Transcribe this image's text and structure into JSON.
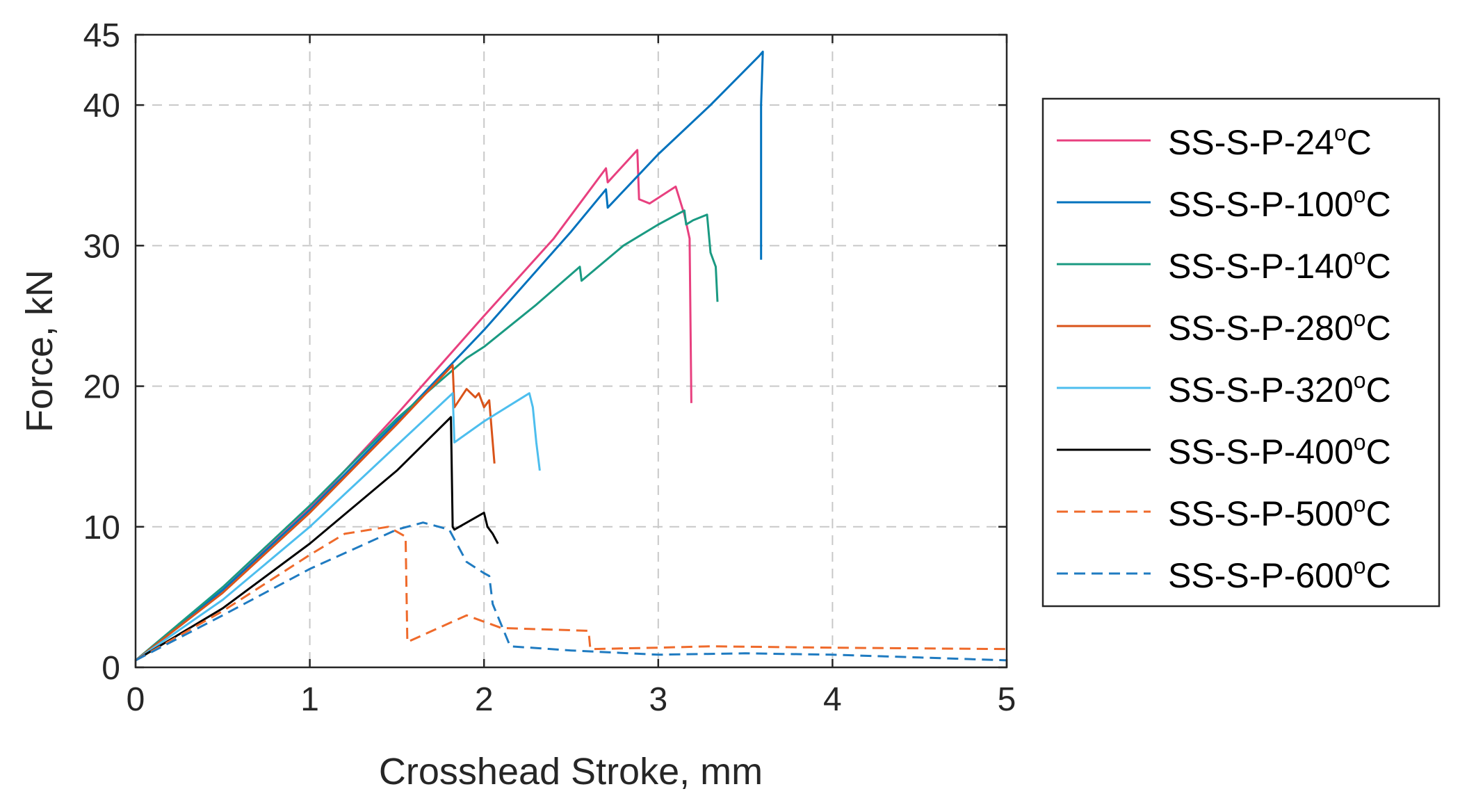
{
  "chart_data": {
    "type": "line",
    "title": "",
    "xlabel": "Crosshead Stroke, mm",
    "ylabel": "Force, kN",
    "xlim": [
      0,
      5
    ],
    "ylim": [
      0,
      45
    ],
    "xticks": [
      "0",
      "1",
      "2",
      "3",
      "4",
      "5"
    ],
    "yticks": [
      "0",
      "10",
      "20",
      "30",
      "40",
      "45"
    ],
    "grid": true,
    "legend_position": "outside-right",
    "series": [
      {
        "name": "SS-S-P-24",
        "unit_sup": "o",
        "unit": "C",
        "color": "#e8407f",
        "dash": "solid",
        "x": [
          0,
          0.5,
          1.0,
          1.5,
          2.0,
          2.4,
          2.7,
          2.71,
          2.88,
          2.89,
          2.95,
          3.1,
          3.15,
          3.18,
          3.19
        ],
        "y": [
          0.5,
          5.5,
          11.3,
          18.0,
          25.0,
          30.5,
          35.5,
          34.5,
          36.8,
          33.3,
          33.0,
          34.2,
          32.2,
          30.5,
          18.8
        ]
      },
      {
        "name": "SS-S-P-100",
        "unit_sup": "o",
        "unit": "C",
        "color": "#0072bd",
        "dash": "solid",
        "x": [
          0,
          0.5,
          1.0,
          1.5,
          2.0,
          2.5,
          2.7,
          2.71,
          3.0,
          3.3,
          3.58,
          3.6,
          3.59,
          3.59
        ],
        "y": [
          0.5,
          5.5,
          11.2,
          17.5,
          24.0,
          31.0,
          34.0,
          32.7,
          36.5,
          40.0,
          43.5,
          43.8,
          40.0,
          29.0
        ]
      },
      {
        "name": "SS-S-P-140",
        "unit_sup": "o",
        "unit": "C",
        "color": "#1a9a82",
        "dash": "solid",
        "x": [
          0,
          0.5,
          1.0,
          1.5,
          1.9,
          2.0,
          2.1,
          2.3,
          2.55,
          2.56,
          2.8,
          3.0,
          3.15,
          3.16,
          3.2,
          3.28,
          3.3,
          3.33,
          3.34
        ],
        "y": [
          0.5,
          5.7,
          11.5,
          17.7,
          22.0,
          22.8,
          23.8,
          25.8,
          28.5,
          27.5,
          30.0,
          31.5,
          32.5,
          31.5,
          31.8,
          32.2,
          29.5,
          28.5,
          26.0
        ]
      },
      {
        "name": "SS-S-P-280",
        "unit_sup": "o",
        "unit": "C",
        "color": "#d95319",
        "dash": "solid",
        "x": [
          0,
          0.5,
          1.0,
          1.5,
          1.82,
          1.83,
          1.9,
          1.95,
          1.97,
          2.0,
          2.03,
          2.05,
          2.06
        ],
        "y": [
          0.5,
          5.3,
          11.0,
          17.3,
          21.5,
          18.5,
          19.8,
          19.2,
          19.5,
          18.5,
          19.0,
          16.0,
          14.5
        ]
      },
      {
        "name": "SS-S-P-320",
        "unit_sup": "o",
        "unit": "C",
        "color": "#4dbeee",
        "dash": "solid",
        "x": [
          0,
          0.5,
          1.0,
          1.5,
          1.82,
          1.83,
          2.0,
          2.26,
          2.28,
          2.3,
          2.32
        ],
        "y": [
          0.5,
          4.8,
          10.0,
          15.8,
          19.5,
          16.0,
          17.5,
          19.5,
          18.5,
          16.0,
          14.0
        ]
      },
      {
        "name": "SS-S-P-400",
        "unit_sup": "o",
        "unit": "C",
        "color": "#000000",
        "dash": "solid",
        "x": [
          0,
          0.5,
          1.0,
          1.5,
          1.81,
          1.82,
          1.83,
          2.0,
          2.02,
          2.05,
          2.08
        ],
        "y": [
          0.5,
          4.2,
          8.8,
          14.0,
          17.8,
          10.0,
          9.8,
          11.0,
          10.0,
          9.5,
          8.8
        ]
      },
      {
        "name": "SS-S-P-500",
        "unit_sup": "o",
        "unit": "C",
        "color": "#ef6a2b",
        "dash": "dashed",
        "x": [
          0,
          0.5,
          1.0,
          1.2,
          1.45,
          1.55,
          1.56,
          1.9,
          2.1,
          2.6,
          2.61,
          3.0,
          3.3,
          4.0,
          5.0
        ],
        "y": [
          0.5,
          4.0,
          8.0,
          9.5,
          10.0,
          9.3,
          1.8,
          3.7,
          2.8,
          2.6,
          1.3,
          1.4,
          1.5,
          1.4,
          1.3
        ]
      },
      {
        "name": "SS-S-P-600",
        "unit_sup": "o",
        "unit": "C",
        "color": "#1f7bc1",
        "dash": "dashed",
        "x": [
          0,
          0.5,
          1.0,
          1.5,
          1.65,
          1.8,
          1.9,
          2.0,
          2.03,
          2.05,
          2.1,
          2.15,
          2.5,
          3.0,
          3.5,
          4.0,
          4.5,
          5.0
        ],
        "y": [
          0.5,
          3.7,
          7.0,
          9.8,
          10.3,
          9.8,
          7.5,
          6.7,
          6.5,
          4.5,
          3.0,
          1.5,
          1.2,
          0.9,
          1.0,
          0.9,
          0.7,
          0.5
        ]
      }
    ]
  }
}
